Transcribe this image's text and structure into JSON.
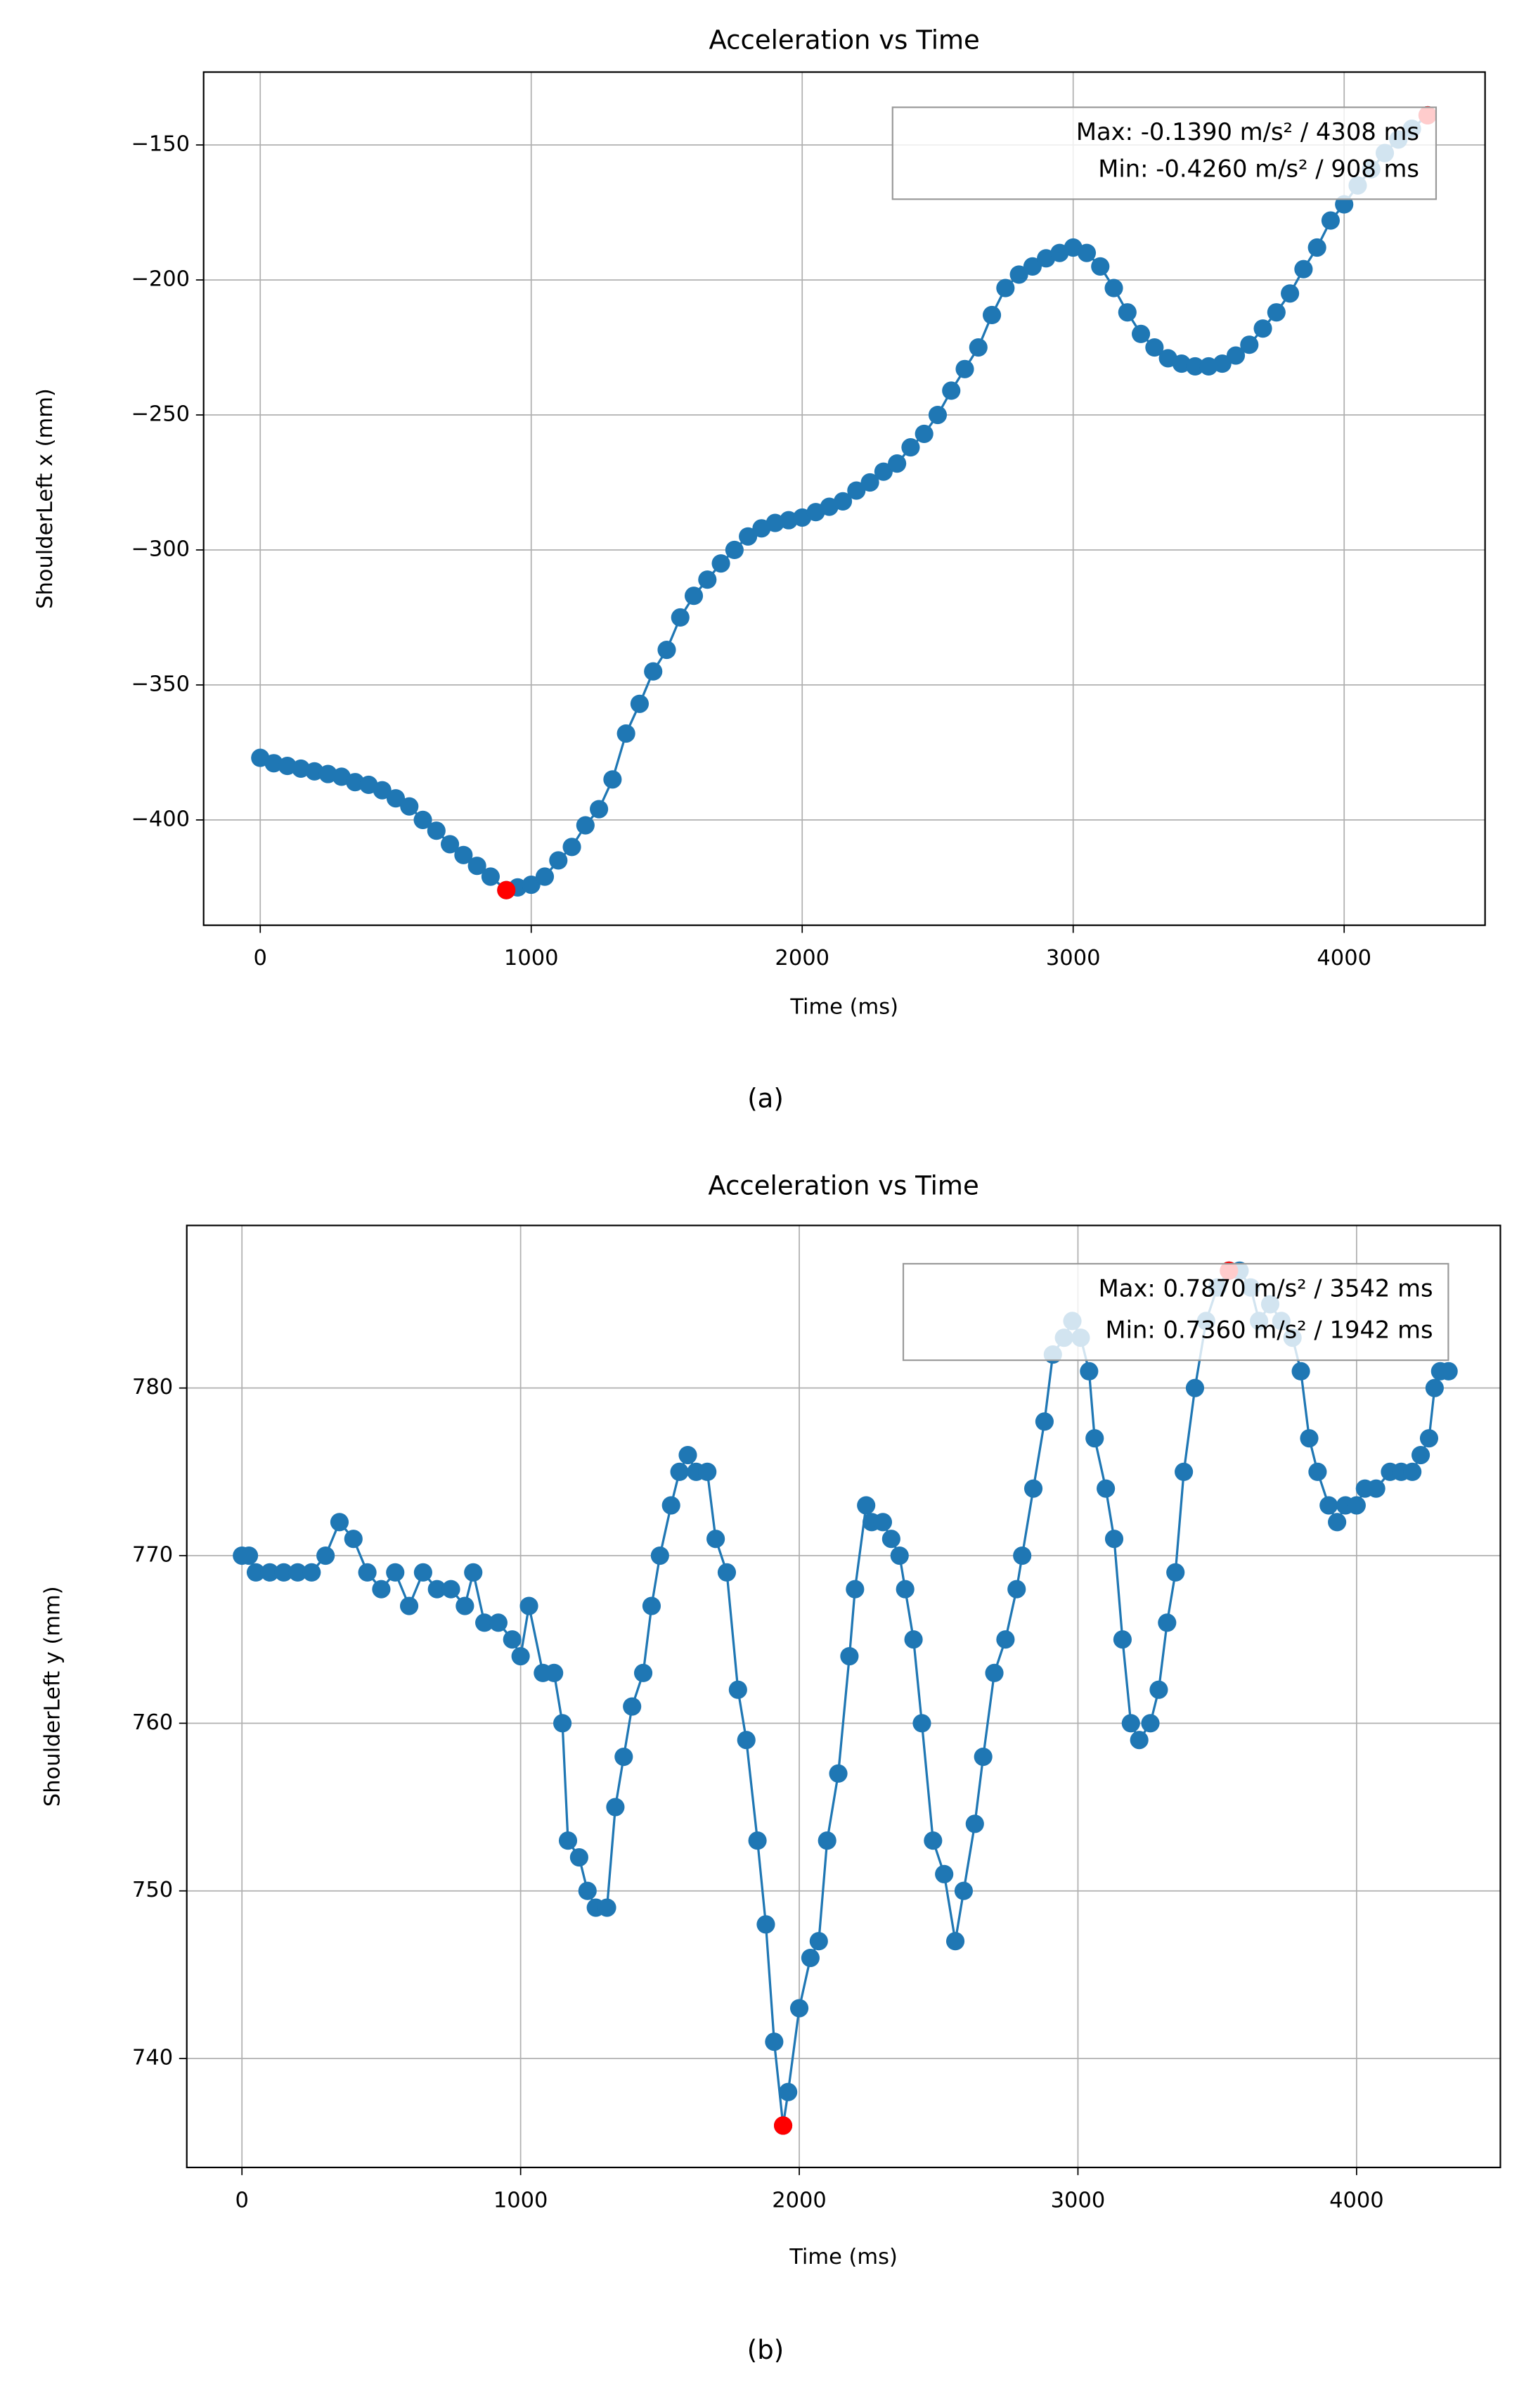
{
  "chart_data": [
    {
      "type": "line",
      "title": "Acceleration vs Time",
      "xlabel": "Time (ms)",
      "ylabel": "ShoulderLeft x (mm)",
      "x": [
        0,
        50,
        100,
        150,
        200,
        250,
        300,
        350,
        400,
        450,
        500,
        550,
        600,
        650,
        700,
        750,
        800,
        850,
        908,
        950,
        1000,
        1050,
        1100,
        1150,
        1200,
        1250,
        1300,
        1350,
        1400,
        1450,
        1500,
        1550,
        1600,
        1650,
        1700,
        1750,
        1800,
        1850,
        1900,
        1950,
        2000,
        2050,
        2100,
        2150,
        2200,
        2250,
        2300,
        2350,
        2400,
        2450,
        2500,
        2550,
        2600,
        2650,
        2700,
        2750,
        2800,
        2850,
        2900,
        2950,
        3000,
        3050,
        3100,
        3150,
        3200,
        3250,
        3300,
        3350,
        3400,
        3450,
        3500,
        3550,
        3600,
        3650,
        3700,
        3750,
        3800,
        3850,
        3900,
        3950,
        4000,
        4050,
        4100,
        4150,
        4200,
        4250,
        4308
      ],
      "series": [
        {
          "color": "#1f77b4",
          "values": [
            -377,
            -379,
            -380,
            -381,
            -382,
            -383,
            -384,
            -386,
            -387,
            -389,
            -392,
            -395,
            -400,
            -404,
            -409,
            -413,
            -417,
            -421,
            -426,
            -425,
            -424,
            -421,
            -415,
            -410,
            -402,
            -396,
            -385,
            -368,
            -357,
            -345,
            -337,
            -325,
            -317,
            -311,
            -305,
            -300,
            -295,
            -292,
            -290,
            -289,
            -288,
            -286,
            -284,
            -282,
            -278,
            -275,
            -271,
            -268,
            -262,
            -257,
            -250,
            -241,
            -233,
            -225,
            -213,
            -203,
            -198,
            -195,
            -192,
            -190,
            -188,
            -190,
            -195,
            -203,
            -212,
            -220,
            -225,
            -229,
            -231,
            -232,
            -232,
            -231,
            -228,
            -224,
            -218,
            -212,
            -205,
            -196,
            -188,
            -178,
            -172,
            -165,
            -159,
            -153,
            -148,
            -144,
            -139
          ]
        }
      ],
      "highlights": {
        "color": "red",
        "x": [
          908,
          4308
        ],
        "values": [
          -426,
          -139
        ]
      },
      "annotation": [
        "Max: -0.1390 m/s² / 4308 ms",
        "Min: -0.4260 m/s² / 908 ms"
      ],
      "xlim": [
        -209,
        4520
      ],
      "ylim": [
        -439,
        -123
      ],
      "xticks": [
        0,
        1000,
        2000,
        3000,
        4000
      ],
      "yticks": [
        {
          "value": -400,
          "label": "−400"
        },
        {
          "value": -350,
          "label": "−350"
        },
        {
          "value": -300,
          "label": "−300"
        },
        {
          "value": -250,
          "label": "−250"
        },
        {
          "value": -200,
          "label": "−200"
        },
        {
          "value": -150,
          "label": "−150"
        }
      ],
      "grid": true,
      "caption": "(a)"
    },
    {
      "type": "line",
      "title": "Acceleration vs Time",
      "xlabel": "Time (ms)",
      "ylabel": "ShoulderLeft y (mm)",
      "x": [
        0,
        25,
        50,
        100,
        150,
        200,
        250,
        300,
        350,
        400,
        450,
        500,
        550,
        600,
        650,
        700,
        750,
        800,
        830,
        870,
        920,
        970,
        1000,
        1030,
        1080,
        1120,
        1150,
        1170,
        1210,
        1240,
        1270,
        1310,
        1340,
        1370,
        1400,
        1440,
        1470,
        1500,
        1540,
        1570,
        1600,
        1630,
        1670,
        1700,
        1740,
        1780,
        1810,
        1850,
        1880,
        1910,
        1942,
        1960,
        2000,
        2040,
        2070,
        2100,
        2140,
        2180,
        2200,
        2240,
        2260,
        2300,
        2330,
        2360,
        2380,
        2410,
        2440,
        2480,
        2520,
        2560,
        2590,
        2630,
        2660,
        2700,
        2740,
        2780,
        2800,
        2840,
        2880,
        2910,
        2950,
        2980,
        3010,
        3040,
        3060,
        3100,
        3130,
        3160,
        3190,
        3220,
        3260,
        3290,
        3320,
        3350,
        3380,
        3420,
        3460,
        3500,
        3542,
        3580,
        3620,
        3650,
        3690,
        3730,
        3770,
        3800,
        3830,
        3860,
        3900,
        3930,
        3960,
        4000,
        4030,
        4070,
        4120,
        4160,
        4200,
        4230,
        4260,
        4280,
        4300,
        4330
      ],
      "series": [
        {
          "color": "#1f77b4",
          "values": [
            770,
            770,
            769,
            769,
            769,
            769,
            769,
            770,
            772,
            771,
            769,
            768,
            769,
            767,
            769,
            768,
            768,
            767,
            769,
            766,
            766,
            765,
            764,
            767,
            763,
            763,
            760,
            753,
            752,
            750,
            749,
            749,
            755,
            758,
            761,
            763,
            767,
            770,
            773,
            775,
            776,
            775,
            775,
            771,
            769,
            762,
            759,
            753,
            748,
            741,
            736,
            738,
            743,
            746,
            747,
            753,
            757,
            764,
            768,
            773,
            772,
            772,
            771,
            770,
            768,
            765,
            760,
            753,
            751,
            747,
            750,
            754,
            758,
            763,
            765,
            768,
            770,
            774,
            778,
            782,
            783,
            784,
            783,
            781,
            777,
            774,
            771,
            765,
            760,
            759,
            760,
            762,
            766,
            769,
            775,
            780,
            784,
            786,
            787,
            787,
            786,
            784,
            785,
            784,
            783,
            781,
            777,
            775,
            773,
            772,
            773,
            773,
            774,
            774,
            775,
            775,
            775,
            776,
            777,
            780,
            781,
            781
          ]
        }
      ],
      "highlights": {
        "color": "red",
        "x": [
          1942,
          3542
        ],
        "values": [
          736,
          787
        ]
      },
      "annotation": [
        "Max: 0.7870 m/s² / 3542 ms",
        "Min: 0.7360 m/s² / 1942 ms"
      ],
      "xlim": [
        -198,
        4516
      ],
      "ylim": [
        733.5,
        789.7
      ],
      "xticks": [
        0,
        1000,
        2000,
        3000,
        4000
      ],
      "yticks": [
        740,
        750,
        760,
        770,
        780
      ],
      "grid": true,
      "caption": "(b)"
    }
  ]
}
